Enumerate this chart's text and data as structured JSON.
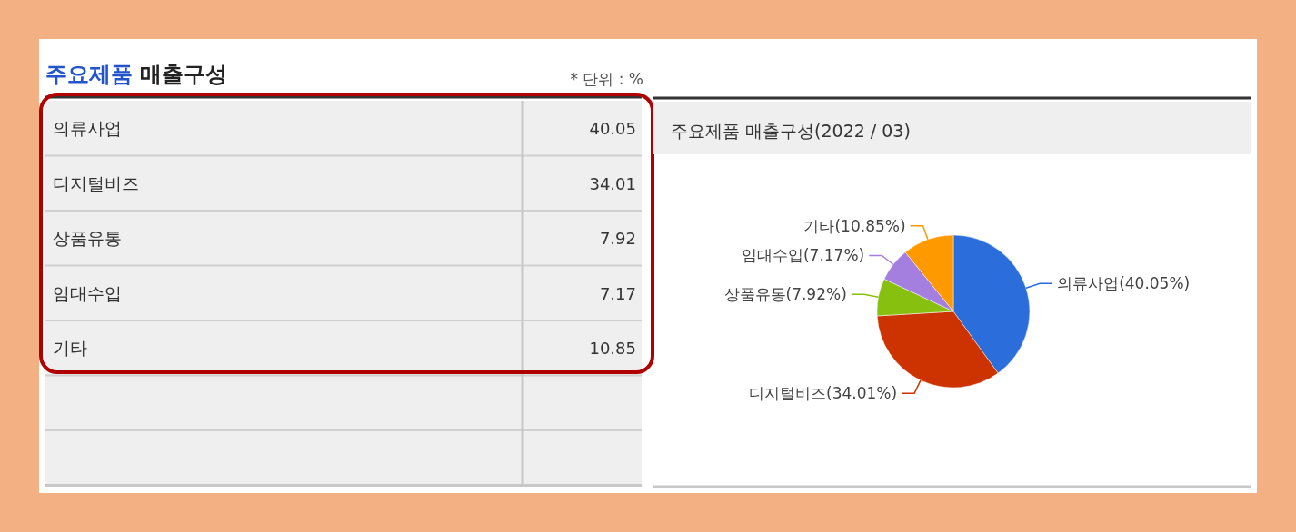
{
  "chart_data": [
    {
      "type": "other",
      "title": "주요제품 매출구성",
      "annotations": [
        "* 단위 : %"
      ],
      "categories": [
        "의류사업",
        "디지털비즈",
        "상품유통",
        "임대수입",
        "기타"
      ],
      "values": [
        40.05,
        34.01,
        7.92,
        7.17,
        10.85
      ],
      "data_labels": true
    },
    {
      "type": "pie",
      "title": "주요제품 매출구성(2022 / 03)",
      "categories": [
        "의류사업",
        "디지털비즈",
        "상품유통",
        "임대수입",
        "기타"
      ],
      "values": [
        40.05,
        34.01,
        7.92,
        7.17,
        10.85
      ],
      "colors": [
        "#2a6ddb",
        "#cc3300",
        "#88c010",
        "#a57fe0",
        "#ff9900"
      ],
      "value_labels": [
        "(40.05%)",
        "(34.01%)",
        "(7.92%)",
        "(7.17%)",
        "(10.85%)"
      ]
    }
  ]
}
